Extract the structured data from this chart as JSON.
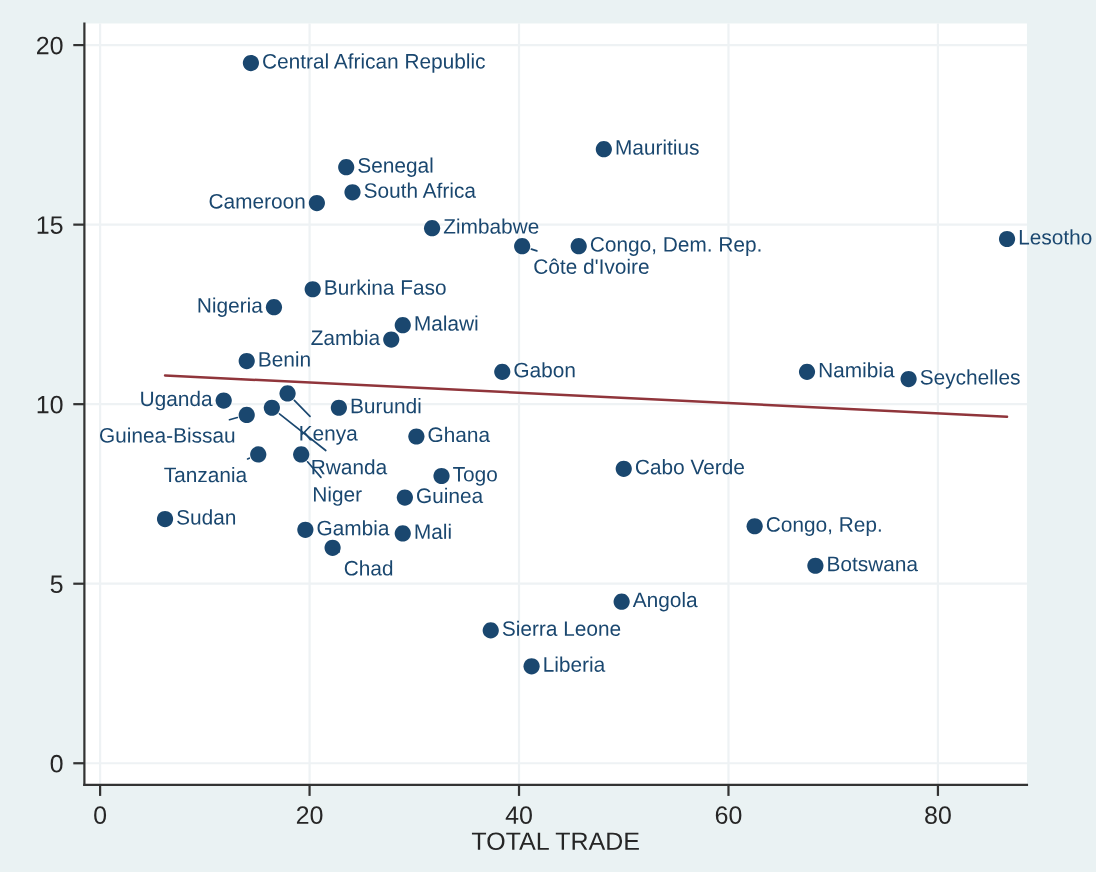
{
  "chart_data": {
    "type": "scatter",
    "xlabel": "TOTAL TRADE",
    "xlim": [
      -1.5,
      88.5
    ],
    "ylim": [
      -0.6,
      20.6
    ],
    "xticks": [
      0,
      20,
      40,
      60,
      80
    ],
    "yticks": [
      0,
      5,
      10,
      15,
      20
    ],
    "grid": true,
    "marker": "circle",
    "series": [
      {
        "color": "#1a476f",
        "x": [
          14.4,
          23.5,
          24.1,
          20.7,
          31.7,
          40.3,
          45.7,
          48.1,
          86.6,
          20.3,
          16.6,
          28.9,
          27.8,
          14.0,
          38.4,
          67.5,
          77.2,
          11.8,
          17.9,
          16.4,
          22.8,
          14.0,
          30.2,
          15.1,
          19.2,
          32.6,
          50.0,
          29.1,
          6.2,
          19.6,
          28.9,
          22.2,
          62.5,
          68.3,
          49.8,
          37.3,
          41.2
        ],
        "values": [
          19.5,
          16.6,
          15.9,
          15.6,
          14.9,
          14.4,
          14.4,
          17.1,
          14.6,
          13.2,
          12.7,
          12.2,
          11.8,
          11.2,
          10.9,
          10.9,
          10.7,
          10.1,
          10.3,
          9.9,
          9.9,
          9.7,
          9.1,
          8.6,
          8.6,
          8.0,
          8.2,
          7.4,
          6.8,
          6.5,
          6.4,
          6.0,
          6.6,
          5.5,
          4.5,
          3.7,
          2.7
        ]
      },
      {
        "type": "line",
        "color": "#90353b",
        "marker": "none",
        "x": [
          6.2,
          86.6
        ],
        "values": [
          10.8,
          9.65
        ]
      }
    ],
    "annotations": [
      {
        "text": "Central African Republic",
        "x": 14.4,
        "y": 19.5
      },
      {
        "text": "Senegal",
        "x": 23.5,
        "y": 16.6
      },
      {
        "text": "South Africa",
        "x": 24.1,
        "y": 15.9
      },
      {
        "text": "Cameroon",
        "x": 20.7,
        "y": 15.6
      },
      {
        "text": "Zimbabwe",
        "x": 31.7,
        "y": 14.9
      },
      {
        "text": "Côte d'Ivoire",
        "x": 40.3,
        "y": 14.4
      },
      {
        "text": "Congo, Dem. Rep.",
        "x": 45.7,
        "y": 14.4
      },
      {
        "text": "Mauritius",
        "x": 48.1,
        "y": 17.1
      },
      {
        "text": "Lesotho",
        "x": 86.6,
        "y": 14.6
      },
      {
        "text": "Burkina Faso",
        "x": 20.3,
        "y": 13.2
      },
      {
        "text": "Nigeria",
        "x": 16.6,
        "y": 12.7
      },
      {
        "text": "Malawi",
        "x": 28.9,
        "y": 12.2
      },
      {
        "text": "Zambia",
        "x": 27.8,
        "y": 11.8
      },
      {
        "text": "Benin",
        "x": 14.0,
        "y": 11.2
      },
      {
        "text": "Gabon",
        "x": 38.4,
        "y": 10.9
      },
      {
        "text": "Namibia",
        "x": 67.5,
        "y": 10.9
      },
      {
        "text": "Seychelles",
        "x": 77.2,
        "y": 10.7
      },
      {
        "text": "Uganda",
        "x": 11.8,
        "y": 10.1
      },
      {
        "text": "Kenya",
        "x": 17.9,
        "y": 10.3
      },
      {
        "text": "Rwanda",
        "x": 16.4,
        "y": 9.9
      },
      {
        "text": "Burundi",
        "x": 22.8,
        "y": 9.9
      },
      {
        "text": "Guinea-Bissau",
        "x": 14.0,
        "y": 9.7
      },
      {
        "text": "Ghana",
        "x": 30.2,
        "y": 9.1
      },
      {
        "text": "Tanzania",
        "x": 15.1,
        "y": 8.6
      },
      {
        "text": "Niger",
        "x": 19.2,
        "y": 8.6
      },
      {
        "text": "Togo",
        "x": 32.6,
        "y": 8.0
      },
      {
        "text": "Cabo Verde",
        "x": 50.0,
        "y": 8.2
      },
      {
        "text": "Guinea",
        "x": 29.1,
        "y": 7.4
      },
      {
        "text": "Sudan",
        "x": 6.2,
        "y": 6.8
      },
      {
        "text": "Gambia",
        "x": 19.6,
        "y": 6.5
      },
      {
        "text": "Mali",
        "x": 28.9,
        "y": 6.4
      },
      {
        "text": "Chad",
        "x": 22.2,
        "y": 6.0
      },
      {
        "text": "Congo, Rep.",
        "x": 62.5,
        "y": 6.6
      },
      {
        "text": "Botswana",
        "x": 68.3,
        "y": 5.5
      },
      {
        "text": "Angola",
        "x": 49.8,
        "y": 4.5
      },
      {
        "text": "Sierra Leone",
        "x": 37.3,
        "y": 3.7
      },
      {
        "text": "Liberia",
        "x": 41.2,
        "y": 2.7
      }
    ]
  }
}
